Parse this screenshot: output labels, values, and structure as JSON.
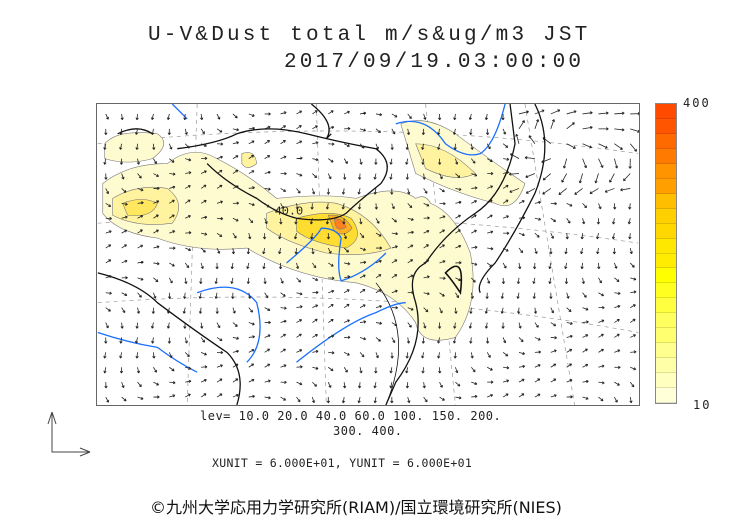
{
  "title": {
    "line1": "U-V&Dust total m/s&ug/m3 JST",
    "line2": "2017/09/19.03:00:00"
  },
  "map": {
    "contour_label": "40.0",
    "levels": [
      10.0,
      20.0,
      40.0,
      60.0,
      100,
      150,
      200,
      300,
      400
    ]
  },
  "legend": {
    "lev_line1": "lev= 10.0 20.0 40.0 60.0 100. 150. 200.",
    "lev_line2": "300. 400.",
    "units": "XUNIT = 6.000E+01, YUNIT = 6.000E+01",
    "max_label": "400",
    "min_label": "10",
    "colors": [
      "#ff4a00",
      "#ff5500",
      "#ff6a00",
      "#ff7a00",
      "#ff9400",
      "#ffa000",
      "#ffbf00",
      "#ffd000",
      "#ffd800",
      "#ffe800",
      "#ffec00",
      "#ffff00",
      "#ffff20",
      "#ffff40",
      "#ffff60",
      "#ffff70",
      "#ffff90",
      "#ffffa8",
      "#ffffc0",
      "#ffffd8"
    ]
  },
  "credit": "©九州大学応用力学研究所(RIAM)/国立環境研究所(NIES)"
}
